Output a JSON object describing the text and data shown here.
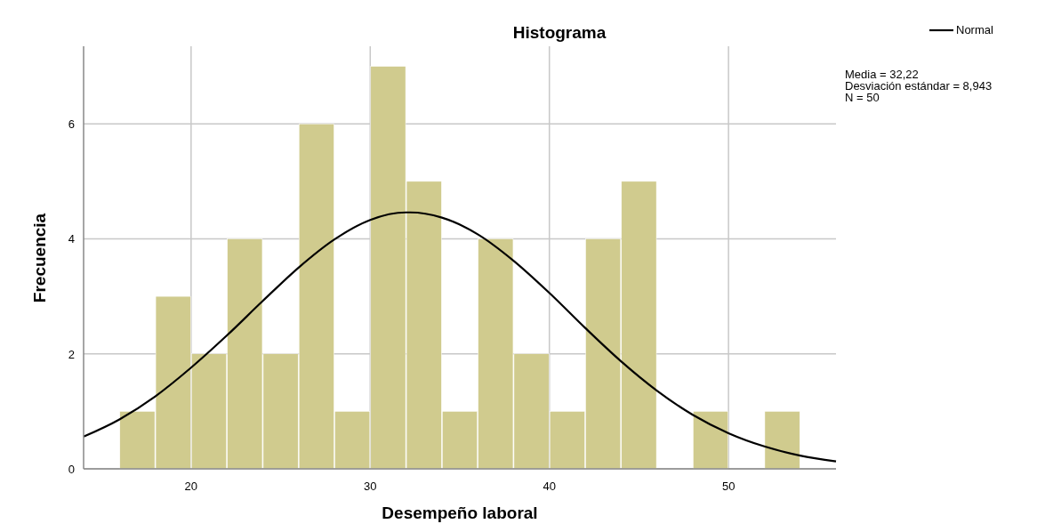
{
  "chart_data": {
    "type": "histogram",
    "title": "Histograma",
    "xlabel": "Desempeño laboral",
    "ylabel": "Frecuencia",
    "bins": [
      16,
      18,
      20,
      22,
      24,
      26,
      28,
      30,
      32,
      34,
      36,
      38,
      40,
      42,
      44,
      46,
      48,
      50,
      52,
      54
    ],
    "series": [
      {
        "color": "#d0cb8e",
        "values": [
          1,
          3,
          2,
          4,
          2,
          6,
          1,
          7,
          5,
          1,
          4,
          2,
          1,
          4,
          5,
          0,
          1,
          0,
          1
        ]
      },
      {
        "type": "line",
        "name": "Normal",
        "color": "#000000",
        "x": [
          14,
          16,
          18,
          20,
          22,
          24,
          26,
          28,
          30,
          32,
          32.22,
          34,
          36,
          38,
          40,
          42,
          44,
          46,
          48,
          50,
          52,
          54,
          56
        ],
        "values": [
          0.56,
          0.86,
          1.26,
          1.76,
          2.32,
          2.92,
          3.5,
          3.99,
          4.33,
          4.46,
          4.46,
          4.37,
          4.08,
          3.62,
          3.06,
          2.45,
          1.87,
          1.36,
          0.94,
          0.62,
          0.39,
          0.23,
          0.13
        ]
      }
    ],
    "xlim": [
      14,
      56
    ],
    "xticks": [
      20,
      30,
      40,
      50
    ],
    "ylim": [
      0,
      7.35
    ],
    "yticks": [
      0,
      2,
      4,
      6
    ],
    "grid": true,
    "legend": "top right",
    "annotations": [
      "Media = 32,22",
      "Desviación estándar = 8,943",
      "N = 50"
    ]
  }
}
